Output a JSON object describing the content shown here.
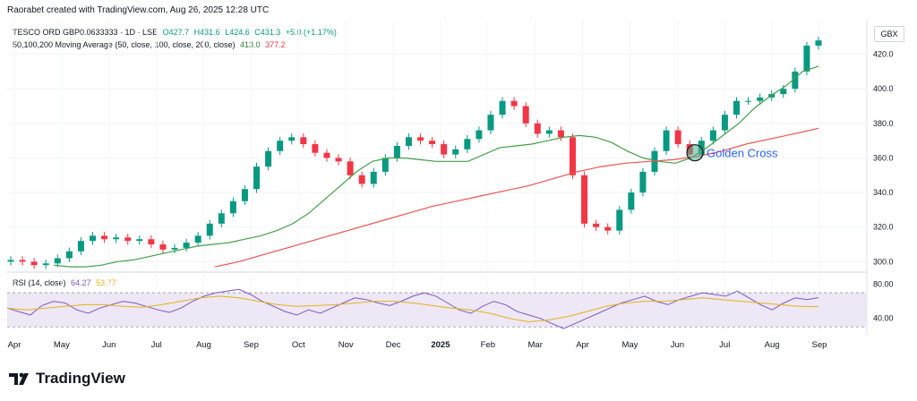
{
  "credit": "Raorabet created with TradingView.com, Aug 26, 2025 12:28 UTC",
  "symbol_line": {
    "symbol": "TESCO ORD GBP0.0633333 · 1D · LSE",
    "open": "O427.7",
    "high": "H431.6",
    "low": "L424.6",
    "close": "C431.3",
    "change": "+5.0 (+1.17%)"
  },
  "ma_line": {
    "label": "50,100,200 Moving Average (50, close, 100, close, 200, close)",
    "ma_a": "413.0",
    "ma_b": "377.2"
  },
  "rsi_line": {
    "label": "RSI (14, close)",
    "rsi": "64.27",
    "rsi_ma": "53.77"
  },
  "currency": "GBX",
  "brand": "TradingView",
  "colors": {
    "up": "#089981",
    "down": "#f23645",
    "ma50": "#43a047",
    "ma200": "#ef5350",
    "rsi": "#7e57c2",
    "rsi_ma": "#e3b318",
    "rsi_band": "#ede7f6"
  },
  "chart_data": [
    {
      "type": "line",
      "subtype": "candlestick",
      "x_tick_labels": [
        "Apr",
        "May",
        "Jun",
        "Jul",
        "Aug",
        "Sep",
        "Oct",
        "Nov",
        "Dec",
        "2025",
        "Feb",
        "Mar",
        "Apr",
        "May",
        "Jun",
        "Jul",
        "Aug",
        "Sep"
      ],
      "y_tick_labels": [
        "300.0",
        "320.0",
        "340.0",
        "360.0",
        "380.0",
        "400.0",
        "420.0"
      ],
      "ylim": [
        295,
        440
      ],
      "series": [
        {
          "name": "TESCO ORD GBP0.0633333",
          "x": [
            0,
            5,
            10,
            15,
            20,
            25,
            30,
            35,
            40,
            45,
            50,
            55,
            60,
            65,
            70,
            75,
            80,
            85,
            90,
            95,
            100,
            105,
            110,
            115,
            120,
            125,
            130,
            135,
            140,
            145,
            150,
            155,
            160,
            165,
            170,
            175,
            180,
            185,
            190,
            195,
            200,
            205,
            210,
            215,
            220,
            225,
            230,
            235,
            240,
            245,
            250,
            255,
            260,
            265,
            270,
            275,
            280,
            285,
            290,
            295,
            300,
            305,
            310,
            315,
            320,
            325,
            330,
            335,
            340,
            345
          ],
          "values": [
            301,
            300,
            298,
            299,
            302,
            306,
            312,
            315,
            313,
            314,
            312,
            313,
            310,
            307,
            308,
            311,
            315,
            322,
            328,
            335,
            342,
            355,
            364,
            370,
            372,
            368,
            363,
            360,
            358,
            350,
            345,
            352,
            360,
            367,
            372,
            370,
            368,
            362,
            365,
            371,
            376,
            385,
            393,
            390,
            380,
            374,
            376,
            372,
            350,
            322,
            320,
            318,
            330,
            340,
            352,
            364,
            376,
            368,
            362,
            370,
            376,
            385,
            393,
            393,
            395,
            397,
            400,
            410,
            425,
            428
          ]
        },
        {
          "name": "50",
          "values": [
            298,
            297,
            297,
            298,
            300,
            301,
            303,
            305,
            307,
            309,
            310,
            311,
            313,
            315,
            318,
            322,
            328,
            336,
            344,
            352,
            358,
            360,
            360,
            359,
            358,
            358,
            358,
            362,
            366,
            367,
            368,
            370,
            372,
            373,
            372,
            369,
            364,
            360,
            358,
            357,
            360,
            366,
            373,
            380,
            389,
            396,
            402,
            410,
            413
          ]
        },
        {
          "name": "200",
          "values": [
            297,
            300,
            304,
            308,
            312,
            316,
            320,
            324,
            328,
            332,
            335,
            338,
            341,
            344,
            348,
            352,
            355,
            357,
            358,
            359,
            361,
            364,
            368,
            371,
            374,
            377.2
          ]
        }
      ],
      "annotations": [
        "Golden Cross"
      ]
    },
    {
      "type": "line",
      "title": "RSI (14, close)",
      "y_tick_labels": [
        "40.00",
        "80.00"
      ],
      "ylim": [
        25,
        90
      ],
      "bands": [
        30,
        70
      ],
      "series": [
        {
          "name": "RSI",
          "values": [
            52,
            48,
            44,
            55,
            60,
            58,
            50,
            46,
            52,
            56,
            60,
            58,
            54,
            50,
            47,
            52,
            60,
            66,
            70,
            72,
            74,
            68,
            60,
            54,
            48,
            44,
            50,
            46,
            52,
            58,
            64,
            62,
            58,
            55,
            60,
            66,
            70,
            66,
            58,
            50,
            46,
            54,
            60,
            56,
            48,
            44,
            40,
            34,
            28,
            34,
            40,
            46,
            52,
            58,
            62,
            66,
            60,
            56,
            62,
            66,
            70,
            68,
            66,
            72,
            64,
            56,
            50,
            58,
            64,
            62,
            64.27
          ]
        },
        {
          "name": "RSI MA",
          "values": [
            52,
            50,
            52,
            54,
            56,
            56,
            54,
            53,
            56,
            60,
            64,
            66,
            64,
            60,
            56,
            54,
            55,
            56,
            58,
            60,
            60,
            58,
            55,
            52,
            50,
            46,
            40,
            36,
            38,
            42,
            48,
            54,
            58,
            60,
            60,
            62,
            64,
            62,
            60,
            58,
            56,
            54,
            53.77
          ]
        }
      ]
    }
  ]
}
